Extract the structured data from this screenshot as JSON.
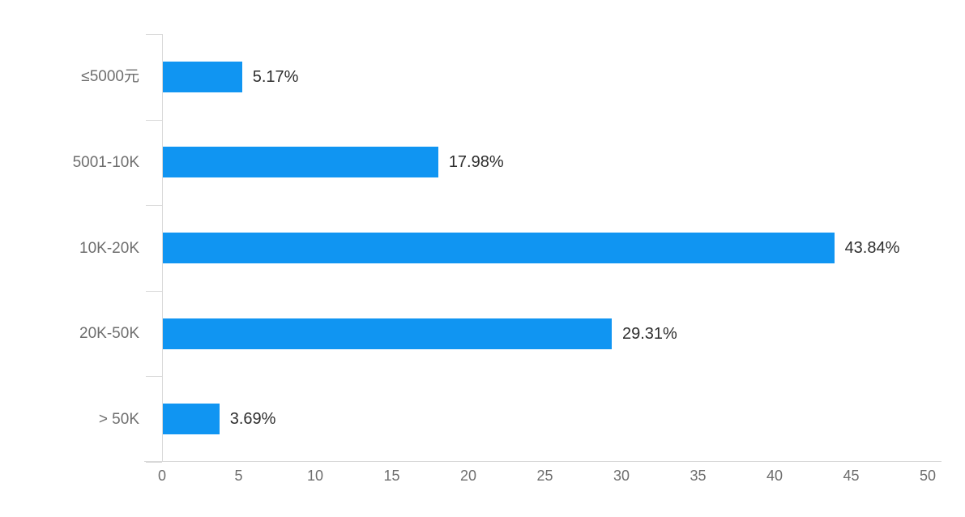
{
  "chart_data": {
    "type": "bar",
    "orientation": "horizontal",
    "title": "",
    "xlabel": "",
    "ylabel": "",
    "categories": [
      "≤5000元",
      "5001-10K",
      "10K-20K",
      "20K-50K",
      "> 50K"
    ],
    "values": [
      5.17,
      17.98,
      43.84,
      29.31,
      3.69
    ],
    "data_labels": [
      "5.17%",
      "17.98%",
      "43.84%",
      "29.31%",
      "3.69%"
    ],
    "x_ticks": [
      0,
      5,
      10,
      15,
      20,
      25,
      30,
      35,
      40,
      45,
      50
    ],
    "xlim": [
      0,
      50
    ],
    "grid": false,
    "legend": false,
    "bar_color": "#1095f2",
    "axis_color": "#d9d9d9",
    "tick_label_color": "#6e6e6e",
    "data_label_color": "#2e2e2e",
    "background_color": "#ffffff"
  }
}
